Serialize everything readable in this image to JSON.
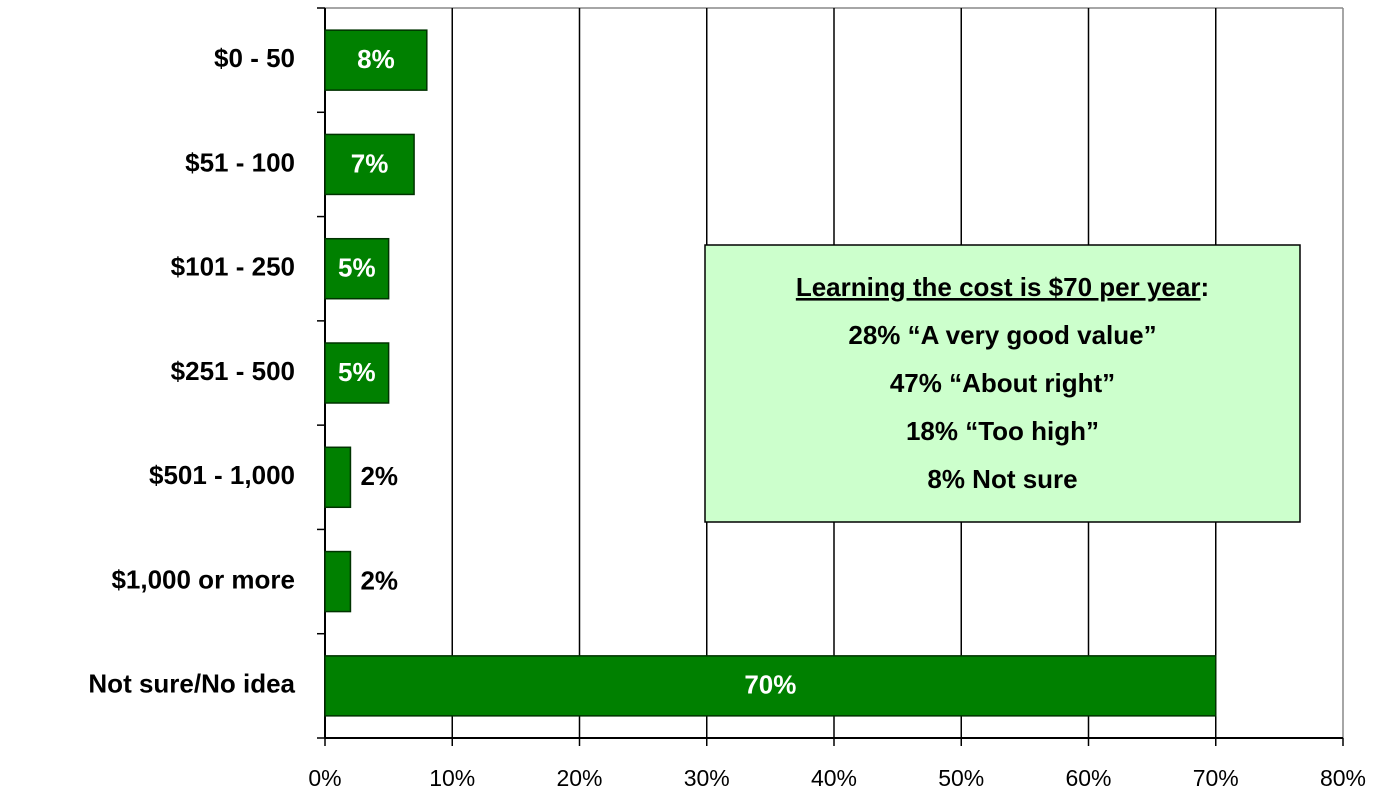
{
  "chart_data": {
    "type": "bar",
    "orientation": "horizontal",
    "categories": [
      "$0 - 50",
      "$51 - 100",
      "$101 - 250",
      "$251 - 500",
      "$501 - 1,000",
      "$1,000 or more",
      "Not sure/No idea"
    ],
    "values": [
      8,
      7,
      5,
      5,
      2,
      2,
      70
    ],
    "value_labels": [
      "8%",
      "7%",
      "5%",
      "5%",
      "2%",
      "2%",
      "70%"
    ],
    "color": "#008000",
    "xlim": [
      0,
      80
    ],
    "xticks": [
      {
        "value": 0,
        "label": "0%"
      },
      {
        "value": 10,
        "label": "10%"
      },
      {
        "value": 20,
        "label": "20%"
      },
      {
        "value": 30,
        "label": "30%"
      },
      {
        "value": 40,
        "label": "40%"
      },
      {
        "value": 50,
        "label": "50%"
      },
      {
        "value": 60,
        "label": "60%"
      },
      {
        "value": 70,
        "label": "70%"
      },
      {
        "value": 80,
        "label": "80%"
      }
    ],
    "grid": true,
    "annotation": {
      "heading": "Learning the cost is $70 per year",
      "heading_end": ":",
      "lines": [
        "28% “A very good value”",
        "47% “About right”",
        "18% “Too high”",
        "8% Not sure"
      ]
    }
  }
}
